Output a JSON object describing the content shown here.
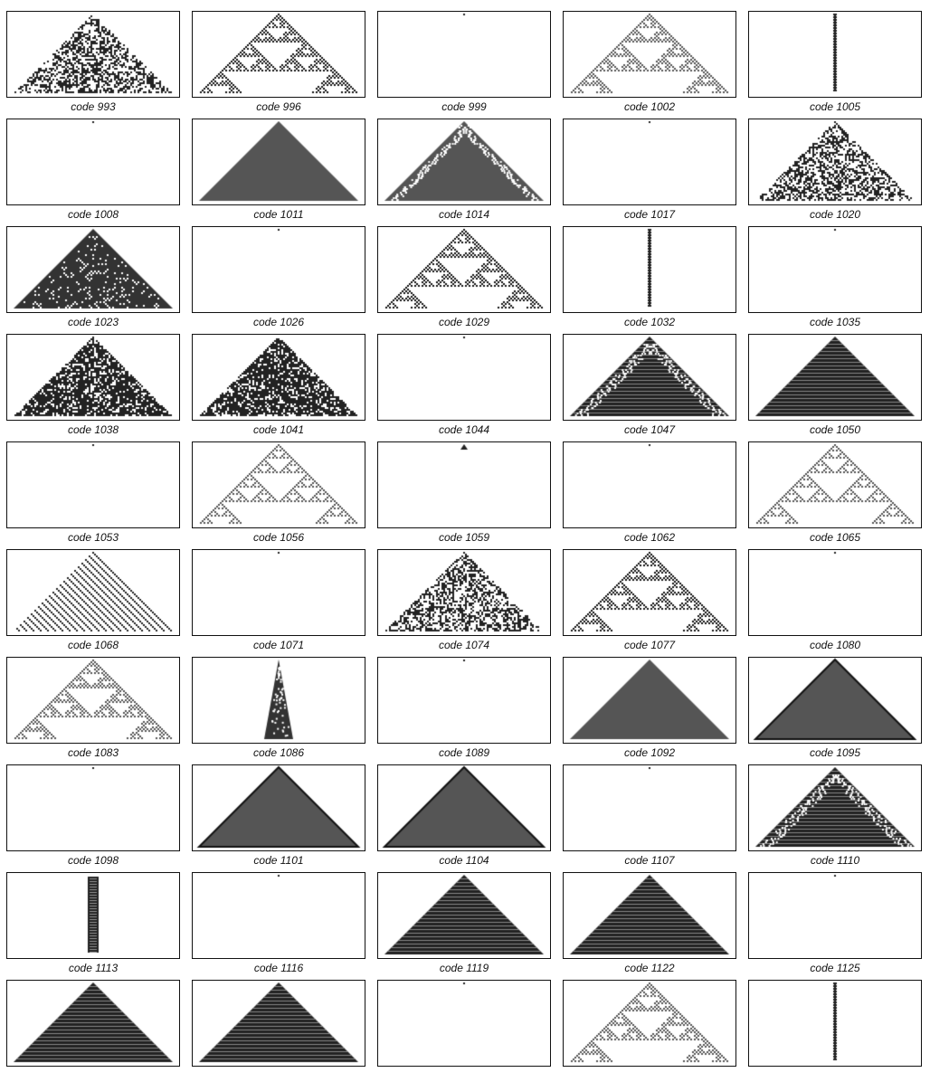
{
  "captions": [
    "code 993",
    "code 996",
    "code 999",
    "code 1002",
    "code 1005",
    "code 1008",
    "code 1011",
    "code 1014",
    "code 1017",
    "code 1020",
    "code 1023",
    "code 1026",
    "code 1029",
    "code 1032",
    "code 1035",
    "code 1038",
    "code 1041",
    "code 1044",
    "code 1047",
    "code 1050",
    "code 1053",
    "code 1056",
    "code 1059",
    "code 1062",
    "code 1065",
    "code 1068",
    "code 1071",
    "code 1074",
    "code 1077",
    "code 1080",
    "code 1083",
    "code 1086",
    "code 1089",
    "code 1092",
    "code 1095",
    "code 1098",
    "code 1101",
    "code 1104",
    "code 1107",
    "code 1110",
    "code 1113",
    "code 1116",
    "code 1119",
    "code 1122",
    "code 1125",
    "",
    "",
    "",
    "",
    ""
  ],
  "panels": [
    {
      "pattern": "random"
    },
    {
      "pattern": "fractal_tree"
    },
    {
      "pattern": "dot"
    },
    {
      "pattern": "fractal_gray"
    },
    {
      "pattern": "column"
    },
    {
      "pattern": "dot"
    },
    {
      "pattern": "solid_gray"
    },
    {
      "pattern": "solid_fringe"
    },
    {
      "pattern": "dot"
    },
    {
      "pattern": "random"
    },
    {
      "pattern": "dark_fractal"
    },
    {
      "pattern": "dot"
    },
    {
      "pattern": "fractal_tree"
    },
    {
      "pattern": "column"
    },
    {
      "pattern": "dot"
    },
    {
      "pattern": "random_dark"
    },
    {
      "pattern": "random_dark"
    },
    {
      "pattern": "dot"
    },
    {
      "pattern": "striped_fringe"
    },
    {
      "pattern": "striped"
    },
    {
      "pattern": "dot"
    },
    {
      "pattern": "sierpinski"
    },
    {
      "pattern": "small_blob"
    },
    {
      "pattern": "dot"
    },
    {
      "pattern": "sierpinski"
    },
    {
      "pattern": "checker"
    },
    {
      "pattern": "dot"
    },
    {
      "pattern": "random"
    },
    {
      "pattern": "fractal_tree"
    },
    {
      "pattern": "dot"
    },
    {
      "pattern": "fractal_gray"
    },
    {
      "pattern": "spike"
    },
    {
      "pattern": "dot"
    },
    {
      "pattern": "solid_gray"
    },
    {
      "pattern": "solid_edge"
    },
    {
      "pattern": "dot"
    },
    {
      "pattern": "solid_edge"
    },
    {
      "pattern": "solid_edge"
    },
    {
      "pattern": "dot"
    },
    {
      "pattern": "striped_fringe"
    },
    {
      "pattern": "column_wide"
    },
    {
      "pattern": "dot"
    },
    {
      "pattern": "striped"
    },
    {
      "pattern": "striped"
    },
    {
      "pattern": "dot"
    },
    {
      "pattern": "striped"
    },
    {
      "pattern": "striped"
    },
    {
      "pattern": "dot"
    },
    {
      "pattern": "fractal_gray"
    },
    {
      "pattern": "column"
    }
  ]
}
